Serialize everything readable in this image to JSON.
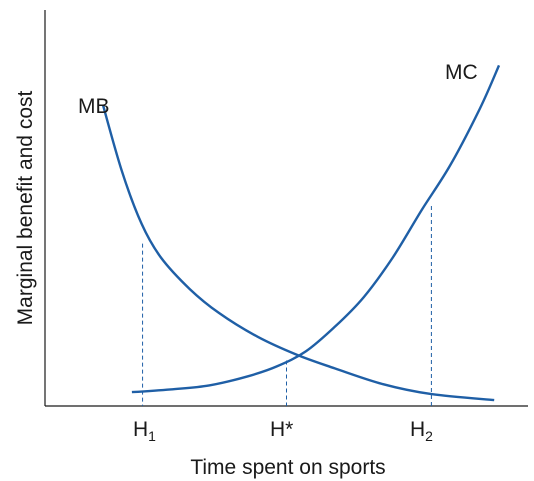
{
  "chart_data": {
    "type": "line",
    "title": "",
    "xlabel": "Time spent on sports",
    "ylabel": "Marginal benefit and cost",
    "xlim": [
      0,
      10
    ],
    "ylim": [
      0,
      10
    ],
    "grid": false,
    "colors": {
      "curve": "#1f5fa6",
      "axis": "#1a1a1a"
    },
    "series": [
      {
        "name": "MB",
        "label": "MB",
        "x": [
          1.2,
          1.6,
          2.0,
          2.4,
          3.0,
          3.6,
          4.4,
          5.2,
          6.0,
          7.0,
          8.0,
          9.3
        ],
        "y": [
          7.6,
          5.9,
          4.6,
          3.75,
          2.95,
          2.35,
          1.75,
          1.3,
          0.95,
          0.55,
          0.3,
          0.15
        ]
      },
      {
        "name": "MC",
        "label": "MC",
        "x": [
          1.8,
          2.6,
          3.4,
          4.2,
          4.8,
          5.4,
          6.0,
          6.6,
          7.2,
          7.8,
          8.4,
          9.0,
          9.4
        ],
        "y": [
          0.35,
          0.42,
          0.52,
          0.75,
          1.0,
          1.38,
          2.0,
          2.75,
          3.75,
          4.95,
          6.1,
          7.5,
          8.6
        ]
      }
    ],
    "markers": [
      {
        "id": "h1",
        "label": "H",
        "subscript": "1",
        "x": 2.02,
        "y": 4.1
      },
      {
        "id": "hstar",
        "label": "H*",
        "subscript": "",
        "x": 5.0,
        "y": 1.15
      },
      {
        "id": "h2",
        "label": "H",
        "subscript": "2",
        "x": 8.0,
        "y": 5.05
      }
    ]
  }
}
